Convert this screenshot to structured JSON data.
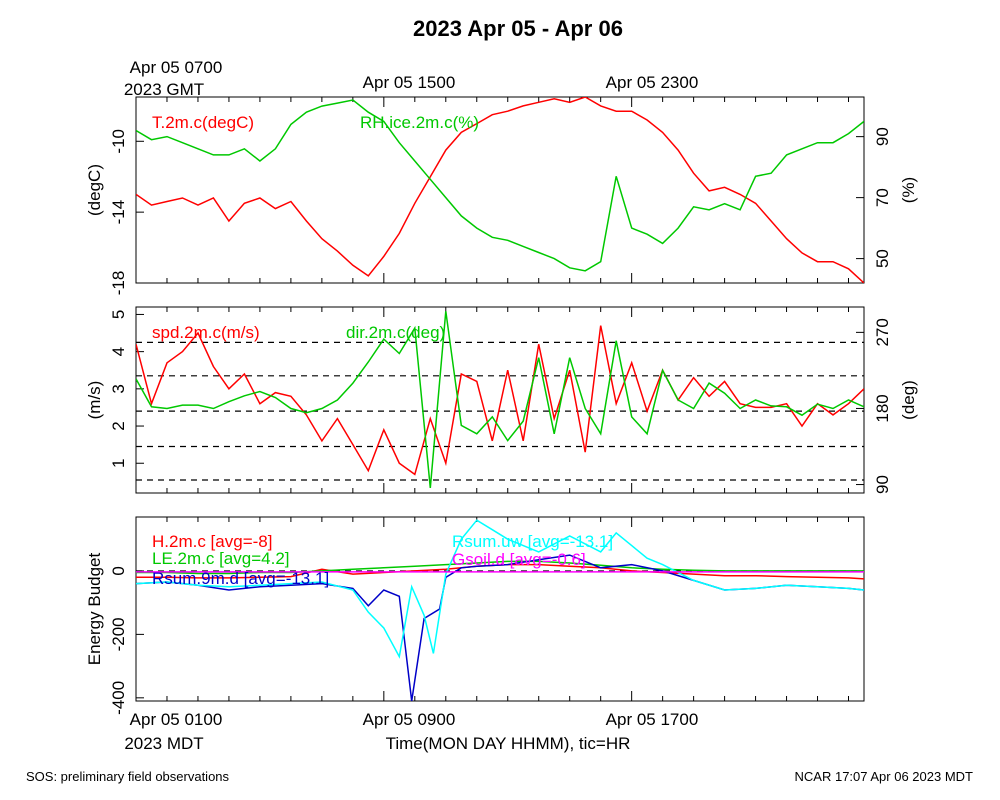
{
  "title": "2023 Apr 05 - Apr 06",
  "top_time_labels": [
    {
      "line1": "Apr 05 0700",
      "line2": "2023 GMT"
    },
    {
      "line1": "Apr 05 1500",
      "line2": ""
    },
    {
      "line1": "Apr 05 2300",
      "line2": ""
    }
  ],
  "bottom_time_labels": [
    {
      "line1": "Apr 05 0100",
      "line2": "2023 MDT"
    },
    {
      "line1": "Apr 05 0900",
      "line2": ""
    },
    {
      "line1": "Apr 05 1700",
      "line2": ""
    }
  ],
  "x_axis_title": "Time(MON DAY HHMM), tic=HR",
  "footer_left": "SOS: preliminary field observations",
  "footer_right": "NCAR 17:07 Apr 06 2023 MDT",
  "colors": {
    "red": "#ff0000",
    "green": "#00c800",
    "blue": "#0000c8",
    "cyan": "#00ffff",
    "magenta": "#ff00ff"
  },
  "chart_data": [
    {
      "type": "line",
      "x_unit": "hours since Apr 05 0100 MDT",
      "xlim": [
        0,
        23.5
      ],
      "left_axis": {
        "label": "(degC)",
        "ylim": [
          -18,
          -7.5
        ],
        "ticks": [
          -18,
          -14,
          -10
        ]
      },
      "right_axis": {
        "label": "(%)",
        "ylim": [
          42,
          103
        ],
        "ticks": [
          50,
          70,
          90
        ]
      },
      "series": [
        {
          "name": "T.2m.c(degC)",
          "color": "#ff0000",
          "axis": "left",
          "x": [
            0,
            0.5,
            1,
            1.5,
            2,
            2.5,
            3,
            3.5,
            4,
            4.5,
            5,
            5.5,
            6,
            6.5,
            7,
            7.5,
            8,
            8.5,
            9,
            9.5,
            10,
            10.5,
            11,
            11.5,
            12,
            12.5,
            13,
            13.5,
            14,
            14.5,
            15,
            15.5,
            16,
            16.5,
            17,
            17.5,
            18,
            18.5,
            19,
            19.5,
            20,
            20.5,
            21,
            21.5,
            22,
            22.5,
            23,
            23.5
          ],
          "y": [
            -13,
            -13.6,
            -13.4,
            -13.2,
            -13.6,
            -13.2,
            -14.5,
            -13.5,
            -13.2,
            -13.8,
            -13.4,
            -14.5,
            -15.5,
            -16.2,
            -17,
            -17.6,
            -16.5,
            -15.2,
            -13.5,
            -12,
            -10.5,
            -9.5,
            -9,
            -8.5,
            -8.3,
            -8,
            -7.8,
            -7.6,
            -7.8,
            -7.5,
            -8,
            -8.3,
            -8.3,
            -8.8,
            -9.5,
            -10.5,
            -11.8,
            -12.8,
            -12.6,
            -13,
            -13.5,
            -14.5,
            -15.5,
            -16.3,
            -16.8,
            -16.8,
            -17.2,
            -18
          ]
        },
        {
          "name": "RH.ice.2m.c(%)",
          "color": "#00c800",
          "axis": "right",
          "x": [
            0,
            0.5,
            1,
            1.5,
            2,
            2.5,
            3,
            3.5,
            4,
            4.5,
            5,
            5.5,
            6,
            6.5,
            7,
            7.5,
            8,
            8.5,
            9,
            9.5,
            10,
            10.5,
            11,
            11.5,
            12,
            12.5,
            13,
            13.5,
            14,
            14.5,
            15,
            15.5,
            16,
            16.5,
            17,
            17.5,
            18,
            18.5,
            19,
            19.5,
            20,
            20.5,
            21,
            21.5,
            22,
            22.5,
            23,
            23.5
          ],
          "y": [
            92,
            89,
            90,
            88,
            86,
            84,
            84,
            86,
            82,
            86,
            94,
            98,
            100,
            101,
            102,
            98,
            95,
            88,
            82,
            76,
            70,
            64,
            60,
            57,
            56,
            54,
            52,
            50,
            47,
            46,
            49,
            77,
            60,
            58,
            55,
            60,
            67,
            66,
            68,
            66,
            77,
            78,
            84,
            86,
            88,
            88,
            91,
            95
          ]
        }
      ]
    },
    {
      "type": "line",
      "x_unit": "hours since Apr 05 0100 MDT",
      "xlim": [
        0,
        23.5
      ],
      "left_axis": {
        "label": "(m/s)",
        "ylim": [
          0.2,
          5.2
        ],
        "ticks": [
          1,
          2,
          3,
          4,
          5
        ]
      },
      "right_axis": {
        "label": "(deg)",
        "ylim": [
          80,
          300
        ],
        "ticks": [
          90,
          180,
          270
        ]
      },
      "reference_lines_left_units": [
        0.55,
        1.45,
        2.4,
        3.35,
        4.25
      ],
      "series": [
        {
          "name": "spd.2m.c(m/s)",
          "color": "#ff0000",
          "axis": "left",
          "x": [
            0,
            0.5,
            1,
            1.5,
            2,
            2.5,
            3,
            3.5,
            4,
            4.5,
            5,
            5.5,
            6,
            6.5,
            7,
            7.5,
            8,
            8.5,
            9,
            9.5,
            10,
            10.5,
            11,
            11.5,
            12,
            12.5,
            13,
            13.5,
            14,
            14.5,
            15,
            15.5,
            16,
            16.5,
            17,
            17.5,
            18,
            18.5,
            19,
            19.5,
            20,
            20.5,
            21,
            21.5,
            22,
            22.5,
            23,
            23.5
          ],
          "y": [
            4.2,
            2.6,
            3.7,
            4,
            4.5,
            3.6,
            3,
            3.4,
            2.6,
            2.9,
            2.8,
            2.3,
            1.6,
            2.2,
            1.5,
            0.8,
            1.9,
            1,
            0.7,
            2.2,
            1,
            3.4,
            3.2,
            1.6,
            3.5,
            1.6,
            4.2,
            2.2,
            3.5,
            1.3,
            4.7,
            2.6,
            3.7,
            2.4,
            3.5,
            2.7,
            3.3,
            2.8,
            3.2,
            2.6,
            2.5,
            2.5,
            2.6,
            2,
            2.6,
            2.3,
            2.6,
            3
          ]
        },
        {
          "name": "dir.2m.c(deg)",
          "color": "#00c800",
          "axis": "right",
          "x": [
            0,
            0.5,
            1,
            1.5,
            2,
            2.5,
            3,
            3.5,
            4,
            4.5,
            5,
            5.5,
            6,
            6.5,
            7,
            7.5,
            8,
            8.5,
            9,
            9.5,
            10,
            10.5,
            11,
            11.5,
            12,
            12.5,
            13,
            13.5,
            14,
            14.5,
            15,
            15.5,
            16,
            16.5,
            17,
            17.5,
            18,
            18.5,
            19,
            19.5,
            20,
            20.5,
            21,
            21.5,
            22,
            22.5,
            23,
            23.5
          ],
          "y": [
            215,
            182,
            180,
            184,
            184,
            180,
            188,
            195,
            200,
            193,
            180,
            175,
            180,
            190,
            210,
            235,
            262,
            245,
            275,
            86,
            295,
            160,
            150,
            170,
            142,
            165,
            240,
            150,
            240,
            180,
            150,
            260,
            170,
            150,
            225,
            190,
            180,
            210,
            198,
            180,
            190,
            183,
            182,
            172,
            185,
            180,
            190,
            182
          ]
        }
      ]
    },
    {
      "type": "line",
      "x_unit": "hours since Apr 05 0100 MDT",
      "xlim": [
        0,
        23.5
      ],
      "left_axis": {
        "label": "Energy Budget",
        "ylim": [
          -410,
          170
        ],
        "ticks": [
          -400,
          -200,
          0
        ]
      },
      "reference_lines_left_units": [
        0
      ],
      "series": [
        {
          "name": "H.2m.c [avg=-8]",
          "color": "#ff0000",
          "x": [
            0,
            1,
            2,
            3,
            4,
            5,
            6,
            7,
            8,
            9,
            10,
            11,
            12,
            13,
            14,
            15,
            16,
            17,
            18,
            19,
            20,
            21,
            22,
            23,
            23.5
          ],
          "y": [
            -20,
            -20,
            -22,
            -22,
            -20,
            -18,
            5,
            -10,
            -5,
            0,
            5,
            15,
            20,
            20,
            15,
            10,
            0,
            -5,
            -10,
            -15,
            -15,
            -18,
            -20,
            -22,
            -25
          ]
        },
        {
          "name": "LE.2m.c [avg=4.2]",
          "color": "#00c800",
          "x": [
            0,
            1,
            2,
            3,
            4,
            5,
            6,
            7,
            8,
            9,
            10,
            11,
            12,
            13,
            14,
            15,
            16,
            17,
            18,
            19,
            20,
            21,
            22,
            23,
            23.5
          ],
          "y": [
            -5,
            -5,
            -8,
            -8,
            -5,
            -5,
            0,
            5,
            10,
            15,
            20,
            25,
            30,
            30,
            25,
            18,
            10,
            5,
            2,
            0,
            0,
            0,
            0,
            0,
            0
          ]
        },
        {
          "name": "Rsum.9m.d [avg=-13.1]",
          "color": "#0000c8",
          "x": [
            0,
            1,
            2,
            3,
            4,
            5,
            6,
            7,
            7.5,
            8,
            8.5,
            8.9,
            9.3,
            9.8,
            10,
            10.5,
            11,
            12,
            13,
            14,
            15,
            16,
            17,
            18,
            19,
            20,
            21,
            22,
            23,
            23.5
          ],
          "y": [
            -40,
            -35,
            -45,
            -60,
            -50,
            -45,
            -40,
            -55,
            -110,
            -60,
            -80,
            -410,
            -150,
            -120,
            -20,
            10,
            15,
            20,
            35,
            50,
            10,
            20,
            0,
            -30,
            -60,
            -55,
            -45,
            -50,
            -55,
            -60
          ]
        },
        {
          "name": "Rsum.uw [avg=-13.1]",
          "color": "#00ffff",
          "x": [
            0,
            1,
            2,
            3,
            4,
            5,
            6,
            7,
            7.5,
            8,
            8.5,
            8.9,
            9.3,
            9.6,
            10,
            10.5,
            11,
            11.5,
            12,
            12.5,
            13,
            14,
            15,
            15.5,
            16,
            16.5,
            17,
            18,
            19,
            20,
            21,
            22,
            23,
            23.5
          ],
          "y": [
            -40,
            -35,
            -45,
            -50,
            -45,
            -40,
            -35,
            -60,
            -130,
            -180,
            -270,
            -50,
            -140,
            -260,
            -10,
            100,
            160,
            130,
            100,
            80,
            60,
            110,
            60,
            120,
            80,
            40,
            20,
            -30,
            -60,
            -55,
            -45,
            -50,
            -55,
            -60
          ]
        },
        {
          "name": "Gsoil.d [avg=-0.6]",
          "color": "#ff00ff",
          "x": [
            0,
            23.5
          ],
          "y": [
            -3,
            -3
          ]
        }
      ]
    }
  ]
}
